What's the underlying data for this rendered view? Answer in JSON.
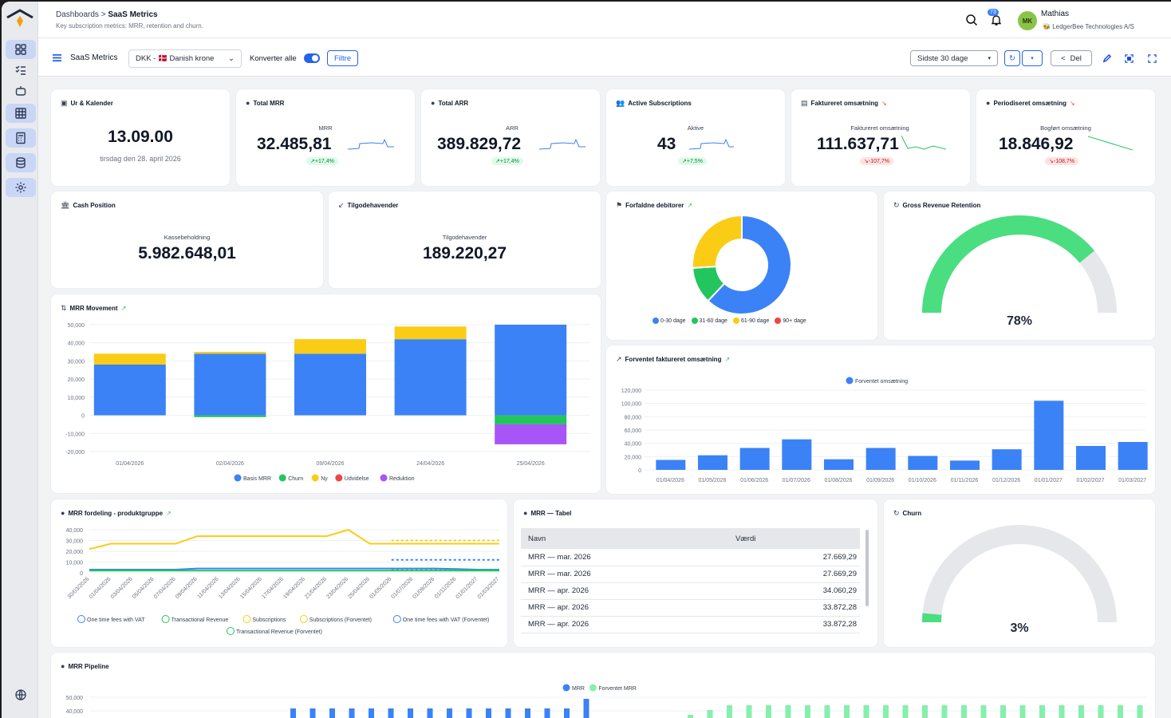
{
  "header": {
    "breadcrumb_root": "Dashboards",
    "breadcrumb_sep": ">",
    "breadcrumb_current": "SaaS Metrics",
    "subtitle": "Key subscription metrics: MRR, retention and churn.",
    "notif_count": "73",
    "user_initials": "MK",
    "user_name": "Mathias",
    "user_company": "LedgerBee Technologies A/S"
  },
  "toolbar": {
    "dashboard_name": "SaaS Metrics",
    "currency": "DKK - 🇩🇰 Danish krone",
    "convert_label": "Konverter alle",
    "filter_label": "Filtre",
    "period_label": "Sidste 30 dage",
    "share_label": "Del"
  },
  "cards": {
    "clock": {
      "title": "Ur & Kalender",
      "time": "13.09.00",
      "date": "tirsdag den 28. april 2026"
    },
    "mrr": {
      "title": "Total MRR",
      "label": "MRR",
      "value": "32.485,81",
      "change": "+17,4%",
      "trend": "up"
    },
    "arr": {
      "title": "Total ARR",
      "label": "ARR",
      "value": "389.829,72",
      "change": "+17,4%",
      "trend": "up"
    },
    "subs": {
      "title": "Active Subscriptions",
      "label": "Aktive",
      "value": "43",
      "change": "+7,5%",
      "trend": "up"
    },
    "invoiced": {
      "title": "Faktureret omsætning",
      "label": "Faktureret omsætning",
      "value": "111.637,71",
      "change": "-107,7%",
      "trend": "down"
    },
    "accrued": {
      "title": "Periodiseret omsætning",
      "label": "Bogført omsætning",
      "value": "18.846,92",
      "change": "-108,7%",
      "trend": "down"
    },
    "cash": {
      "title": "Cash Position",
      "label": "Kassebeholdning",
      "value": "5.982.648,01"
    },
    "receivables": {
      "title": "Tilgodehavender",
      "label": "Tilgodehavender",
      "value": "189.220,27"
    },
    "overdue": {
      "title": "Forfaldne debitorer"
    },
    "grr": {
      "title": "Gross Revenue Retention",
      "value": "78%",
      "fraction": 0.78
    },
    "movement": {
      "title": "MRR Movement"
    },
    "forecast": {
      "title": "Forventet faktureret omsætning"
    },
    "distribution": {
      "title": "MRR fordeling - produktgruppe"
    },
    "table": {
      "title": "MRR — Tabel",
      "columns": [
        "Navn",
        "Værdi"
      ],
      "rows": [
        [
          "MRR — mar. 2026",
          "27.669,29"
        ],
        [
          "MRR — mar. 2026",
          "27.669,29"
        ],
        [
          "MRR — apr. 2026",
          "34.060,29"
        ],
        [
          "MRR — apr. 2026",
          "33.872,28"
        ],
        [
          "MRR — apr. 2026",
          "33.872,28"
        ]
      ]
    },
    "churn": {
      "title": "Churn",
      "value": "3%",
      "fraction": 0.03
    },
    "pipeline": {
      "title": "MRR Pipeline"
    }
  },
  "colors": {
    "blue": "#3b82f6",
    "green": "#22c55e",
    "yellow": "#facc15",
    "red": "#ef4444",
    "purple": "#a855f7",
    "gaugeGreen": "#4ade80",
    "gaugeGrey": "#e5e7eb"
  },
  "chart_data": [
    {
      "id": "mrr-movement",
      "type": "bar",
      "stacked": true,
      "categories": [
        "01/04/2026",
        "02/04/2026",
        "09/04/2026",
        "24/04/2026",
        "25/04/2026"
      ],
      "series": [
        {
          "name": "Basis MRR",
          "values": [
            28000,
            34000,
            34000,
            42000,
            50000
          ]
        },
        {
          "name": "Churn",
          "values": [
            0,
            -1000,
            0,
            0,
            -5000
          ]
        },
        {
          "name": "Ny",
          "values": [
            6000,
            1000,
            8000,
            7000,
            0
          ]
        },
        {
          "name": "Udvidelse",
          "values": [
            0,
            0,
            0,
            0,
            0
          ]
        },
        {
          "name": "Reduktion",
          "values": [
            0,
            0,
            0,
            0,
            -11000
          ]
        }
      ],
      "yticks": [
        "50,000",
        "40,000",
        "30,000",
        "20,000",
        "10,000",
        "0",
        "-10,000",
        "-20,000"
      ],
      "ylim": [
        -20000,
        50000
      ]
    },
    {
      "id": "overdue-donut",
      "type": "pie",
      "categories": [
        "0-30 dage",
        "31-60 dage",
        "61-90 dage",
        "90+ dage"
      ],
      "values": [
        62,
        12,
        26,
        0
      ]
    },
    {
      "id": "forecast",
      "type": "bar",
      "categories": [
        "01/04/2026",
        "01/05/2026",
        "01/06/2026",
        "01/07/2026",
        "01/08/2026",
        "01/09/2026",
        "01/10/2026",
        "01/11/2026",
        "01/12/2026",
        "01/01/2027",
        "01/02/2027",
        "01/03/2027"
      ],
      "series": [
        {
          "name": "Forventet omsætning",
          "values": [
            15000,
            22000,
            33000,
            46000,
            16000,
            33000,
            21000,
            14000,
            31000,
            104000,
            36000,
            42000
          ]
        }
      ],
      "yticks": [
        "120,000",
        "100,000",
        "80,000",
        "60,000",
        "40,000",
        "20,000",
        "0"
      ],
      "ylim": [
        0,
        120000
      ]
    },
    {
      "id": "distribution",
      "type": "line",
      "categories": [
        "30/03/2026",
        "01/04/2026",
        "03/04/2026",
        "05/04/2026",
        "07/04/2026",
        "09/04/2026",
        "11/04/2026",
        "13/04/2026",
        "15/04/2026",
        "17/04/2026",
        "19/04/2026",
        "21/04/2026",
        "23/04/2026",
        "25/04/2026",
        "01/05/2026",
        "01/07/2026",
        "01/09/2026",
        "01/11/2026",
        "01/01/2027",
        "01/03/2027"
      ],
      "series": [
        {
          "name": "One time fees with VAT",
          "values": [
            3000,
            3000,
            3000,
            3000,
            3000,
            4000,
            4000,
            4000,
            4000,
            4000,
            4000,
            4000,
            4000,
            4000,
            4000,
            4000,
            4000,
            3500,
            3000,
            3000
          ]
        },
        {
          "name": "Transactional Revenue",
          "values": [
            2000,
            2000,
            2000,
            2000,
            2000,
            2000,
            2000,
            2000,
            2000,
            2000,
            2000,
            2000,
            2000,
            2000,
            2000,
            2000,
            2000,
            2000,
            2000,
            2000
          ]
        },
        {
          "name": "Subscriptions",
          "values": [
            22000,
            27000,
            27000,
            27000,
            27000,
            34000,
            34000,
            34000,
            34000,
            34000,
            34000,
            34000,
            40000,
            27000,
            27000,
            27000,
            27000,
            27000,
            27000,
            27000
          ]
        },
        {
          "name": "Subscriptions (Forventet)",
          "values": [
            null,
            null,
            null,
            null,
            null,
            null,
            null,
            null,
            null,
            null,
            null,
            null,
            null,
            null,
            30000,
            30000,
            30000,
            30000,
            30000,
            30000
          ]
        },
        {
          "name": "One time fees with VAT (Forventet)",
          "values": [
            null,
            null,
            null,
            null,
            null,
            null,
            null,
            null,
            null,
            null,
            null,
            null,
            null,
            null,
            12000,
            12000,
            12000,
            12000,
            12000,
            12000
          ]
        },
        {
          "name": "Transactional Revenue (Forventet)",
          "values": [
            null,
            null,
            null,
            null,
            null,
            null,
            null,
            null,
            null,
            null,
            null,
            null,
            null,
            null,
            2500,
            2500,
            2500,
            2500,
            2500,
            2500
          ]
        }
      ],
      "yticks": [
        "40,000",
        "30,000",
        "20,000",
        "10,000",
        "0"
      ],
      "ylim": [
        0,
        40000
      ]
    },
    {
      "id": "pipeline",
      "type": "bar",
      "series": [
        {
          "name": "MRR"
        },
        {
          "name": "Forventet MRR"
        }
      ],
      "yticks": [
        "50,000",
        "40,000"
      ],
      "ylim": [
        0,
        50000
      ]
    }
  ]
}
